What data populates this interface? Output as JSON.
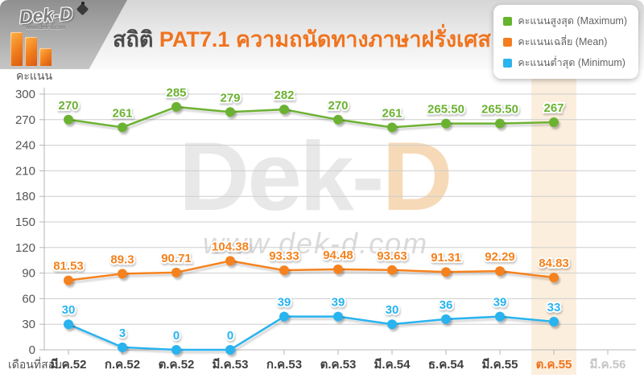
{
  "header": {
    "logo": {
      "brand": "Dek-D",
      "url_text": "www.dek-d.com"
    },
    "title_prefix": "สถิติ",
    "title_main": "PAT7.1 ความถนัดทางภาษาฝรั่งเศส"
  },
  "legend": {
    "items": [
      {
        "label": "คะแนนสูงสุด (Maximum)",
        "color": "#64b32c"
      },
      {
        "label": "คะแนนเฉลี่ย (Mean)",
        "color": "#f57d1f"
      },
      {
        "label": "คะแนนต่ำสุด (Minimum)",
        "color": "#2ab3ed"
      }
    ]
  },
  "watermark": {
    "brand_prefix": "Dek-",
    "brand_suffix": "D",
    "url": "www.dek-d.com"
  },
  "chart_data": {
    "type": "line",
    "title": "สถิติ PAT7.1 ความถนัดทางภาษาฝรั่งเศส",
    "ylabel": "คะแนน",
    "xlabel": "เดือนที่สอบ",
    "categories": [
      "มี.ค.52",
      "ก.ค.52",
      "ต.ค.52",
      "มี.ค.53",
      "ก.ค.53",
      "ต.ค.53",
      "มี.ค.54",
      "ธ.ค.54",
      "มี.ค.55",
      "ต.ค.55",
      "มี.ค.56"
    ],
    "highlighted_category": "ต.ค.55",
    "muted_category": "มี.ค.56",
    "highlight_band_color": "#fceedd",
    "ylim": [
      0,
      300
    ],
    "yticks": [
      0,
      30,
      60,
      90,
      120,
      150,
      180,
      210,
      240,
      270,
      300
    ],
    "grid": true,
    "legend_position": "top-right",
    "series": [
      {
        "name": "คะแนนสูงสุด (Maximum)",
        "color": "#6cb232",
        "values": [
          270,
          261,
          285,
          279,
          282,
          270,
          261,
          265.5,
          265.5,
          267
        ],
        "labels": [
          "270",
          "261",
          "285",
          "279",
          "282",
          "270",
          "261",
          "265.50",
          "265.50",
          "267"
        ]
      },
      {
        "name": "คะแนนเฉลี่ย (Mean)",
        "color": "#f5821e",
        "values": [
          81.53,
          89.3,
          90.71,
          104.38,
          93.33,
          94.48,
          93.63,
          91.31,
          92.29,
          84.83
        ],
        "labels": [
          "81.53",
          "89.3",
          "90.71",
          "104.38",
          "93.33",
          "94.48",
          "93.63",
          "91.31",
          "92.29",
          "84.83"
        ]
      },
      {
        "name": "คะแนนต่ำสุด (Minimum)",
        "color": "#29b3ef",
        "values": [
          30,
          3,
          0,
          0,
          39,
          39,
          30,
          36,
          39,
          33
        ],
        "labels": [
          "30",
          "3",
          "0",
          "0",
          "39",
          "39",
          "30",
          "36",
          "39",
          "33"
        ]
      }
    ]
  }
}
